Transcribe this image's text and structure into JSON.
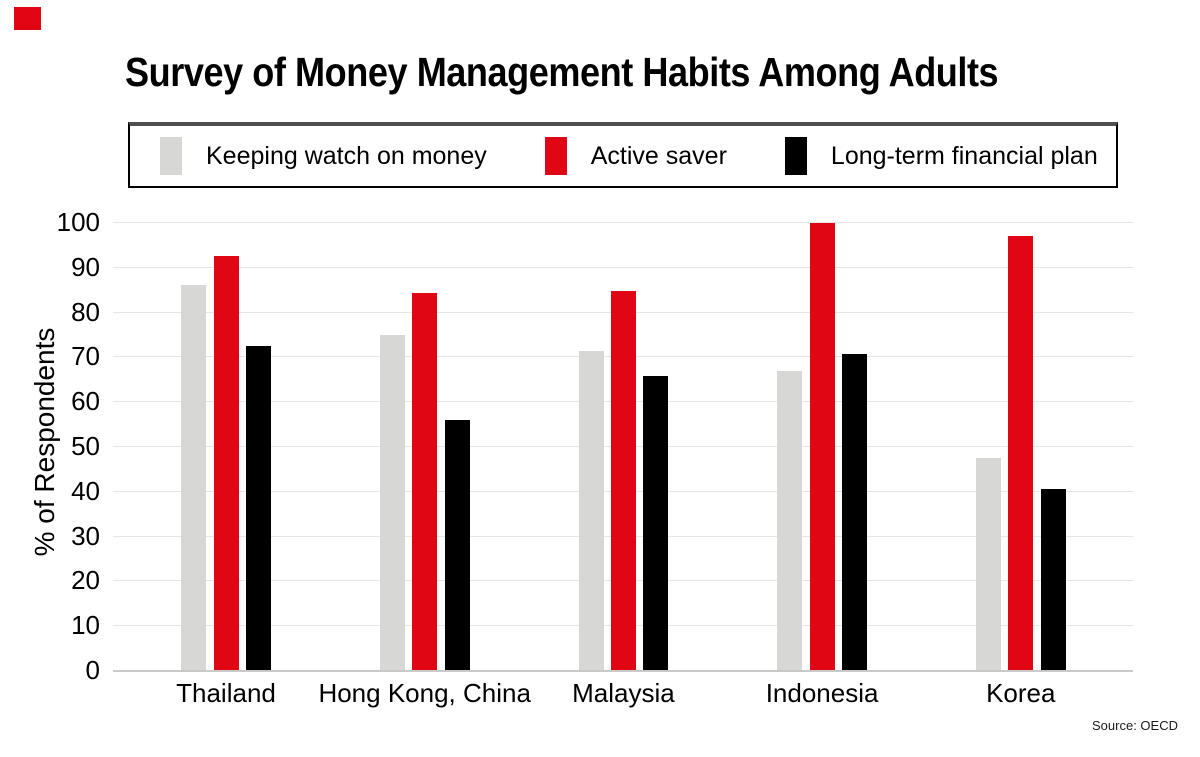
{
  "logo": {
    "color": "#e00613"
  },
  "source_note": "Source: OECD",
  "colors": {
    "accent_red": "#e00613",
    "bar_gray": "#d7d7d5",
    "bar_black": "#000000",
    "gridline": "#e6e6e6",
    "baseline": "#c9c9c9",
    "text": "#000000"
  },
  "chart_data": {
    "type": "bar",
    "title": "Survey of Money Management Habits Among Adults",
    "categories": [
      "Thailand",
      "Hong Kong, China",
      "Malaysia",
      "Indonesia",
      "Korea"
    ],
    "series": [
      {
        "name": "Keeping watch on money",
        "color": "#d7d7d5",
        "values": [
          86,
          74.8,
          71.2,
          66.8,
          47.3
        ]
      },
      {
        "name": "Active saver",
        "color": "#e00613",
        "values": [
          92.5,
          84.1,
          84.5,
          99.8,
          96.9
        ]
      },
      {
        "name": "Long-term financial plan",
        "color": "#000000",
        "values": [
          72.4,
          55.8,
          65.7,
          70.6,
          40.3
        ]
      }
    ],
    "ylabel": "% of Respondents",
    "ylim": [
      0,
      100
    ],
    "yticks": [
      0,
      10,
      20,
      30,
      40,
      50,
      60,
      70,
      80,
      90,
      100
    ],
    "grid": true,
    "legend_position": "top"
  }
}
